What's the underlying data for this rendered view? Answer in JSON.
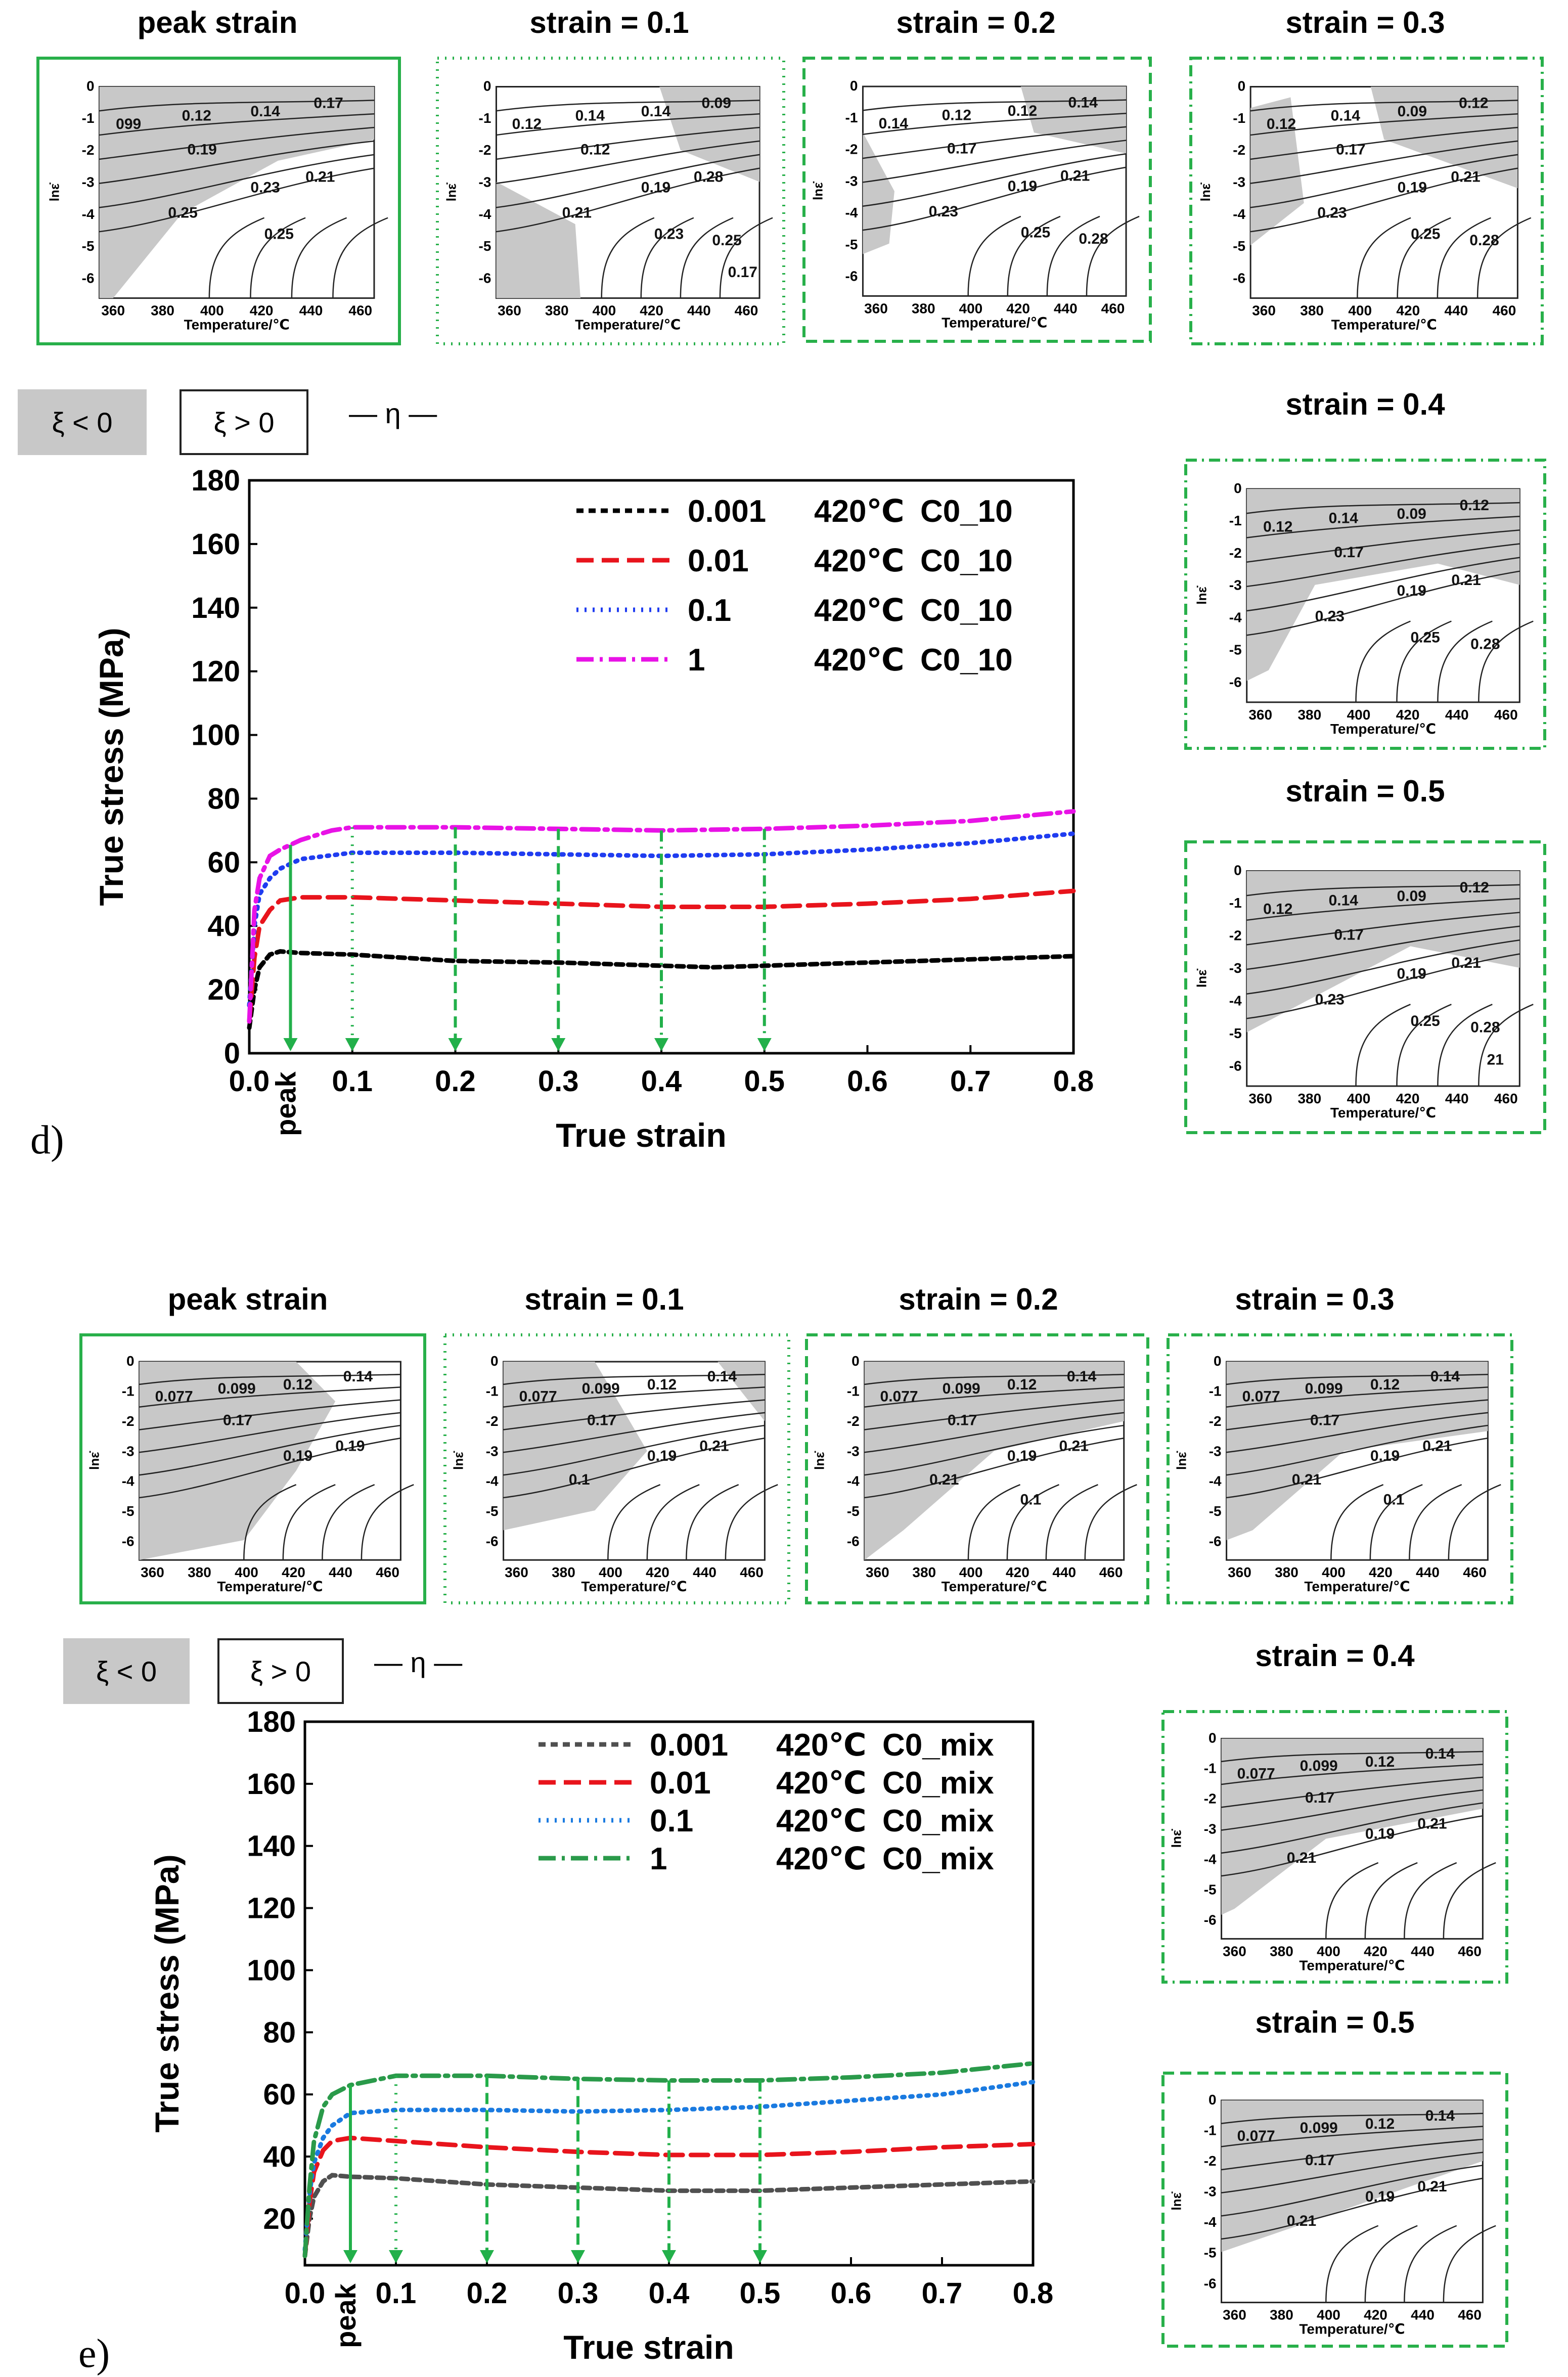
{
  "panels": [
    {
      "id": "d",
      "letter": "d)",
      "chips": {
        "neg": "ξ < 0",
        "pos": "ξ > 0",
        "eta": "— η —"
      },
      "peak_label": "peak",
      "map_captions": [
        "peak strain",
        "strain = 0.1",
        "strain = 0.2",
        "strain = 0.3",
        "strain = 0.4",
        "strain = 0.5"
      ],
      "map_axes": {
        "xlabel": "Temperature/℃",
        "ylabel": "lnε̇",
        "xticks": [
          "360",
          "380",
          "400",
          "420",
          "440",
          "460"
        ],
        "yticks": [
          "0",
          "-1",
          "-2",
          "-3",
          "-4",
          "-5",
          "-6"
        ]
      },
      "map_contours": [
        [
          "099",
          "0.12",
          "0.14",
          "0.17",
          "0.19",
          "0.23",
          "0.21",
          "0.25",
          "0.25"
        ],
        [
          "0.12",
          "0.14",
          "0.14",
          "0.09",
          "0.12",
          "0.19",
          "0.28",
          "0.21",
          "0.23",
          "0.25",
          "0.17"
        ],
        [
          "0.14",
          "0.12",
          "0.12",
          "0.14",
          "0.17",
          "0.19",
          "0.21",
          "0.23",
          "0.25",
          "0.28"
        ],
        [
          "0.12",
          "0.14",
          "0.09",
          "0.12",
          "0.17",
          "0.19",
          "0.21",
          "0.23",
          "0.25",
          "0.28"
        ],
        [
          "0.12",
          "0.14",
          "0.09",
          "0.12",
          "0.17",
          "0.19",
          "0.21",
          "0.23",
          "0.25",
          "0.28"
        ],
        [
          "0.12",
          "0.14",
          "0.09",
          "0.12",
          "0.17",
          "0.19",
          "0.21",
          "0.23",
          "0.25",
          "0.28",
          "21"
        ]
      ],
      "colors": {
        "box": "#28b04a",
        "arrow": "#22b04a",
        "region": "#c8c8c8"
      }
    },
    {
      "id": "e",
      "letter": "e)",
      "chips": {
        "neg": "ξ < 0",
        "pos": "ξ > 0",
        "eta": "— η —"
      },
      "peak_label": "peak",
      "map_captions": [
        "peak strain",
        "strain = 0.1",
        "strain = 0.2",
        "strain = 0.3",
        "strain = 0.4",
        "strain = 0.5"
      ],
      "map_axes": {
        "xlabel": "Temperature/℃",
        "ylabel": "lnε̇",
        "xticks": [
          "360",
          "380",
          "400",
          "420",
          "440",
          "460"
        ],
        "yticks": [
          "0",
          "-1",
          "-2",
          "-3",
          "-4",
          "-5",
          "-6"
        ]
      },
      "map_contours": [
        [
          "0.077",
          "0.099",
          "0.12",
          "0.14",
          "0.17",
          "0.19",
          "0.19"
        ],
        [
          "0.077",
          "0.099",
          "0.12",
          "0.14",
          "0.17",
          "0.19",
          "0.21",
          "0.1"
        ],
        [
          "0.077",
          "0.099",
          "0.12",
          "0.14",
          "0.17",
          "0.19",
          "0.21",
          "0.21",
          "0.1"
        ],
        [
          "0.077",
          "0.099",
          "0.12",
          "0.14",
          "0.17",
          "0.19",
          "0.21",
          "0.21",
          "0.1"
        ],
        [
          "0.077",
          "0.099",
          "0.12",
          "0.14",
          "0.17",
          "0.19",
          "0.21",
          "0.21"
        ],
        [
          "0.077",
          "0.099",
          "0.12",
          "0.14",
          "0.17",
          "0.19",
          "0.21",
          "0.21"
        ]
      ],
      "colors": {
        "box": "#28b04a",
        "arrow": "#22b04a",
        "region": "#c8c8c8"
      }
    }
  ],
  "chart_data": [
    {
      "type": "line",
      "xlabel": "True strain",
      "ylabel": "True stress (MPa)",
      "xlim": [
        0,
        0.8
      ],
      "ylim": [
        0,
        180
      ],
      "xticks": [
        "0.0",
        "0.1",
        "0.2",
        "0.3",
        "0.4",
        "0.5",
        "0.6",
        "0.7",
        "0.8"
      ],
      "yticks": [
        "0",
        "20",
        "40",
        "60",
        "80",
        "100",
        "120",
        "140",
        "160",
        "180"
      ],
      "legend": "top-right",
      "peak_strain": 0.04,
      "arrow_strains": [
        0.04,
        0.1,
        0.2,
        0.3,
        0.4,
        0.5
      ],
      "series": [
        {
          "name": "0.001",
          "temp": "420℃",
          "alloy": "C0_10",
          "color": "#000000",
          "dash": "14 10",
          "x": [
            0,
            0.005,
            0.01,
            0.02,
            0.03,
            0.05,
            0.1,
            0.2,
            0.3,
            0.4,
            0.45,
            0.5,
            0.6,
            0.7,
            0.8
          ],
          "y": [
            8,
            20,
            27,
            31,
            32,
            31.5,
            31,
            29,
            28.5,
            27.5,
            27,
            27.5,
            28.5,
            29.5,
            30.5
          ]
        },
        {
          "name": "0.01",
          "temp": "420℃",
          "alloy": "C0_10",
          "color": "#e8141c",
          "dash": "34 16",
          "x": [
            0,
            0.005,
            0.01,
            0.02,
            0.03,
            0.05,
            0.1,
            0.2,
            0.3,
            0.4,
            0.5,
            0.6,
            0.7,
            0.8
          ],
          "y": [
            10,
            30,
            40,
            45,
            48,
            49,
            49,
            48,
            47,
            46,
            46,
            47,
            48.5,
            51
          ]
        },
        {
          "name": "0.1",
          "temp": "420℃",
          "alloy": "C0_10",
          "color": "#1f3cf0",
          "dash": "4 12",
          "x": [
            0,
            0.005,
            0.01,
            0.02,
            0.03,
            0.05,
            0.1,
            0.2,
            0.3,
            0.4,
            0.5,
            0.6,
            0.7,
            0.8
          ],
          "y": [
            15,
            40,
            50,
            55,
            58,
            61,
            63,
            63,
            62.5,
            62,
            62.5,
            64,
            66,
            69
          ]
        },
        {
          "name": "1",
          "temp": "420℃",
          "alloy": "C0_10",
          "color": "#e812e6",
          "dash": "34 12 6 12",
          "x": [
            0,
            0.005,
            0.01,
            0.02,
            0.03,
            0.05,
            0.08,
            0.1,
            0.2,
            0.3,
            0.4,
            0.5,
            0.6,
            0.7,
            0.8
          ],
          "y": [
            10,
            45,
            55,
            62,
            64,
            67,
            70,
            71,
            71,
            70.5,
            70,
            70.5,
            71.5,
            73,
            76
          ]
        }
      ]
    },
    {
      "type": "line",
      "xlabel": "True strain",
      "ylabel": "True stress (MPa)",
      "xlim": [
        0,
        0.8
      ],
      "ylim": [
        5,
        180
      ],
      "xticks": [
        "0.0",
        "0.1",
        "0.2",
        "0.3",
        "0.4",
        "0.5",
        "0.6",
        "0.7",
        "0.8"
      ],
      "yticks": [
        "20",
        "40",
        "60",
        "80",
        "100",
        "120",
        "140",
        "160",
        "180"
      ],
      "legend": "top-right",
      "peak_strain": 0.05,
      "arrow_strains": [
        0.05,
        0.1,
        0.2,
        0.3,
        0.4,
        0.5
      ],
      "series": [
        {
          "name": "0.001",
          "temp": "420℃",
          "alloy": "C0_mix",
          "color": "#505050",
          "dash": "14 10",
          "x": [
            0,
            0.005,
            0.01,
            0.02,
            0.03,
            0.05,
            0.1,
            0.2,
            0.3,
            0.4,
            0.5,
            0.6,
            0.7,
            0.8
          ],
          "y": [
            8,
            20,
            27,
            32,
            34,
            33.5,
            33,
            31,
            30,
            29,
            29,
            30,
            31,
            32
          ]
        },
        {
          "name": "0.01",
          "temp": "420℃",
          "alloy": "C0_mix",
          "color": "#e8141c",
          "dash": "34 16",
          "x": [
            0,
            0.005,
            0.01,
            0.02,
            0.03,
            0.05,
            0.1,
            0.2,
            0.3,
            0.4,
            0.5,
            0.6,
            0.7,
            0.8
          ],
          "y": [
            8,
            25,
            35,
            42,
            45,
            46,
            45,
            43,
            41.5,
            40.5,
            40.5,
            41.5,
            43,
            44
          ]
        },
        {
          "name": "0.1",
          "temp": "420℃",
          "alloy": "C0_mix",
          "color": "#1a7ae0",
          "dash": "4 12",
          "x": [
            0,
            0.005,
            0.01,
            0.02,
            0.03,
            0.05,
            0.1,
            0.2,
            0.3,
            0.4,
            0.5,
            0.6,
            0.7,
            0.8
          ],
          "y": [
            10,
            28,
            38,
            46,
            50,
            54,
            55,
            55,
            54.5,
            55,
            56,
            58,
            60,
            64
          ]
        },
        {
          "name": "1",
          "temp": "420℃",
          "alloy": "C0_mix",
          "color": "#2a9a4a",
          "dash": "34 12 6 12",
          "x": [
            0,
            0.005,
            0.01,
            0.02,
            0.03,
            0.05,
            0.1,
            0.2,
            0.3,
            0.4,
            0.5,
            0.6,
            0.7,
            0.8
          ],
          "y": [
            8,
            30,
            45,
            56,
            60,
            63,
            66,
            66,
            65,
            64.5,
            64.5,
            65.5,
            67,
            70
          ]
        }
      ]
    }
  ]
}
